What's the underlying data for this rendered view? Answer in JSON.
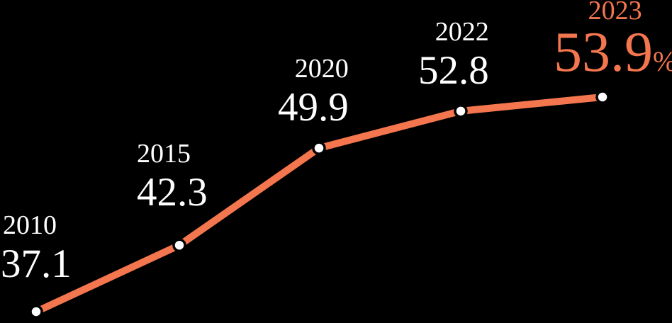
{
  "chart_data": {
    "type": "line",
    "title": "",
    "categories": [
      "2010",
      "2015",
      "2020",
      "2022",
      "2023"
    ],
    "values": [
      37.1,
      42.3,
      49.9,
      52.8,
      53.9
    ],
    "unit": "%",
    "highlight_index": 4,
    "xlabel": "",
    "ylabel": "",
    "ylim": [
      37.1,
      53.9
    ],
    "grid": false,
    "legend": "none",
    "marker": "circle"
  },
  "colors": {
    "background": "#000000",
    "line": "#F4764E",
    "marker_fill": "#FFFFFF",
    "marker_ring": "#000000",
    "label_text": "#FFFFFF",
    "highlight_text": "#F4764E"
  }
}
